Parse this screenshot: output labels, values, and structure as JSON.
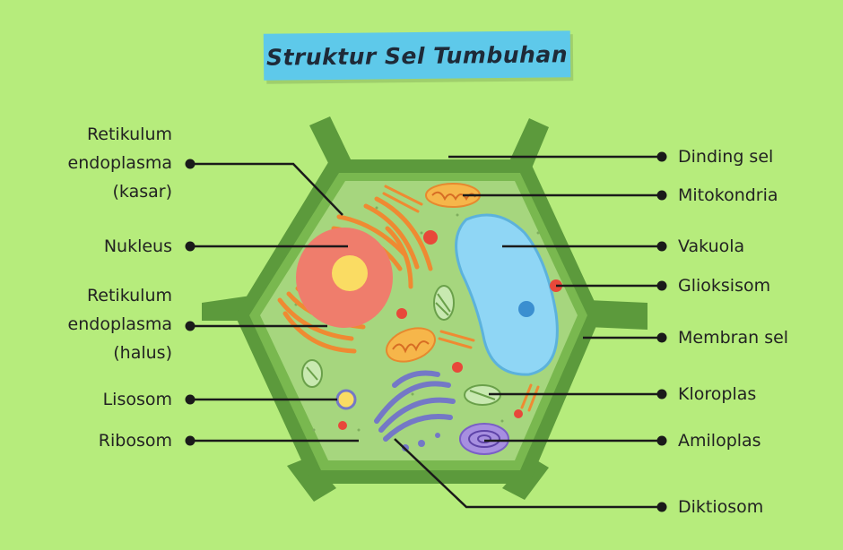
{
  "title": "Struktur Sel Tumbuhan",
  "labels_left": {
    "rer": [
      "Retikulum",
      "endoplasma",
      "(kasar)"
    ],
    "nukleus": "Nukleus",
    "ser": [
      "Retikulum",
      "endoplasma",
      "(halus)"
    ],
    "lisosom": "Lisosom",
    "ribosom": "Ribosom"
  },
  "labels_right": {
    "dinding": "Dinding sel",
    "mitokondria": "Mitokondria",
    "vakuola": "Vakuola",
    "glioksisom": "Glioksisom",
    "membran": "Membran sel",
    "kloroplas": "Kloroplas",
    "amiloplas": "Amiloplas",
    "diktiosom": "Diktiosom"
  },
  "colors": {
    "background": "#b6ec7c",
    "title_bg": "#5ec9ea",
    "cell_wall": "#5c9a3c",
    "cytoplasm": "#a6d67e",
    "nucleus": "#ef7d6c",
    "nucleolus": "#fadc63",
    "vacuole": "#8fd6f5",
    "er": "#ef8a32",
    "golgi": "#7478c6"
  }
}
